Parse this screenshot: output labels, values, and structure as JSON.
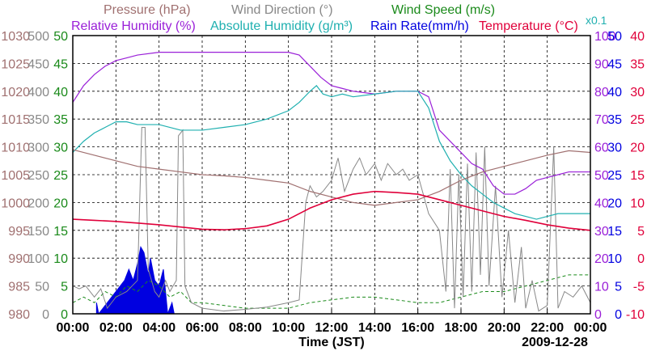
{
  "chart_data": {
    "type": "line",
    "date_label": "2009-12-28",
    "xlabel": "Time (JST)",
    "x_range_hours": [
      0,
      24
    ],
    "x_ticks": [
      "00:00",
      "02:00",
      "04:00",
      "06:00",
      "08:00",
      "10:00",
      "12:00",
      "14:00",
      "16:00",
      "18:00",
      "20:00",
      "22:00",
      "00:00"
    ],
    "legend_row1": [
      {
        "label": "Pressure (hPa)",
        "color": "#a07070"
      },
      {
        "label": "Wind Direction (°)",
        "color": "#888888"
      },
      {
        "label": "Wind Speed (m/s)",
        "color": "#1a8a1a"
      }
    ],
    "legend_row2": [
      {
        "label": "Relative Humidity (%)",
        "color": "#9a20d8"
      },
      {
        "label": "Absolute Humidity (g/m³)",
        "color": "#20b0b0"
      },
      {
        "label": "Rain Rate(mm/h)",
        "color": "#0000e0"
      },
      {
        "label": "Temperature (°C)",
        "color": "#e0003a"
      }
    ],
    "abs_humidity_scale_note": "x0.1",
    "axes": {
      "pressure": {
        "ticks": [
          "1030",
          "1025",
          "1020",
          "1015",
          "1010",
          "1005",
          "1000",
          "995",
          "990",
          "985",
          "980"
        ],
        "range": [
          980,
          1030
        ],
        "color": "#a07070"
      },
      "wind_direction": {
        "ticks": [
          "500",
          "450",
          "400",
          "350",
          "300",
          "250",
          "200",
          "150",
          "100",
          "50",
          "0"
        ],
        "range": [
          0,
          500
        ],
        "color": "#888888"
      },
      "wind_speed": {
        "ticks": [
          "50",
          "45",
          "40",
          "35",
          "30",
          "25",
          "20",
          "15",
          "10",
          "5",
          "0"
        ],
        "range": [
          0,
          50
        ],
        "color": "#1a8a1a"
      },
      "relative_humidity": {
        "ticks": [
          "100",
          "90",
          "80",
          "70",
          "60",
          "50",
          "40",
          "30",
          "20",
          "10",
          "0"
        ],
        "range": [
          0,
          100
        ],
        "color": "#9a20d8"
      },
      "rain_rate": {
        "ticks": [
          "50",
          "45",
          "40",
          "35",
          "30",
          "25",
          "20",
          "15",
          "10",
          "5",
          "0"
        ],
        "range": [
          0,
          50
        ],
        "color": "#0000e0"
      },
      "temperature": {
        "ticks": [
          "40",
          "35",
          "30",
          "25",
          "20",
          "15",
          "10",
          "5",
          "0",
          "-5",
          "-10"
        ],
        "range": [
          -10,
          40
        ],
        "color": "#e0003a"
      }
    },
    "series": [
      {
        "name": "Relative Humidity",
        "axis": "relative_humidity",
        "color": "#9a20d8",
        "points": [
          [
            0,
            76
          ],
          [
            0.5,
            82
          ],
          [
            1,
            86
          ],
          [
            1.5,
            89
          ],
          [
            2,
            91
          ],
          [
            2.5,
            92
          ],
          [
            3,
            93
          ],
          [
            4,
            94
          ],
          [
            6,
            94
          ],
          [
            8,
            94
          ],
          [
            10,
            94
          ],
          [
            10.5,
            93
          ],
          [
            11,
            89
          ],
          [
            11.5,
            85
          ],
          [
            12,
            82
          ],
          [
            12.5,
            81
          ],
          [
            13,
            80
          ],
          [
            14,
            79
          ],
          [
            15,
            80
          ],
          [
            15.5,
            80
          ],
          [
            16,
            80
          ],
          [
            16.5,
            78
          ],
          [
            17,
            66
          ],
          [
            17.5,
            62
          ],
          [
            18,
            58
          ],
          [
            18.5,
            54
          ],
          [
            19,
            52
          ],
          [
            19.5,
            46
          ],
          [
            20,
            43
          ],
          [
            20.5,
            43
          ],
          [
            21,
            45
          ],
          [
            21.5,
            48
          ],
          [
            22,
            49
          ],
          [
            22.5,
            50
          ],
          [
            23,
            51
          ],
          [
            23.5,
            51
          ],
          [
            24,
            51
          ]
        ]
      },
      {
        "name": "Absolute Humidity",
        "axis": "relative_humidity",
        "color": "#20b0b0",
        "points": [
          [
            0,
            58
          ],
          [
            0.5,
            62
          ],
          [
            1,
            65
          ],
          [
            1.5,
            67
          ],
          [
            2,
            69
          ],
          [
            2.5,
            69
          ],
          [
            3,
            68
          ],
          [
            4,
            68
          ],
          [
            5,
            66
          ],
          [
            6,
            66
          ],
          [
            7,
            67
          ],
          [
            8,
            68
          ],
          [
            9,
            70
          ],
          [
            10,
            73
          ],
          [
            10.5,
            76
          ],
          [
            11,
            80
          ],
          [
            11.3,
            82
          ],
          [
            11.6,
            79
          ],
          [
            12,
            78
          ],
          [
            12.5,
            79
          ],
          [
            13,
            78
          ],
          [
            14,
            79
          ],
          [
            15,
            80
          ],
          [
            15.5,
            80
          ],
          [
            16,
            80
          ],
          [
            16.5,
            74
          ],
          [
            17,
            62
          ],
          [
            17.5,
            55
          ],
          [
            18,
            50
          ],
          [
            18.5,
            46
          ],
          [
            19,
            43
          ],
          [
            19.5,
            40
          ],
          [
            20,
            38
          ],
          [
            20.5,
            36
          ],
          [
            21,
            35
          ],
          [
            21.5,
            34
          ],
          [
            22,
            35
          ],
          [
            22.5,
            36
          ],
          [
            23,
            36
          ],
          [
            24,
            36
          ]
        ]
      },
      {
        "name": "Pressure",
        "axis": "pressure",
        "color": "#a07070",
        "points": [
          [
            0,
            1009.5
          ],
          [
            1,
            1008.5
          ],
          [
            2,
            1007.5
          ],
          [
            3,
            1006.5
          ],
          [
            4,
            1006
          ],
          [
            5,
            1005.5
          ],
          [
            6,
            1005
          ],
          [
            7,
            1004.8
          ],
          [
            8,
            1004.5
          ],
          [
            9,
            1004
          ],
          [
            10,
            1003.5
          ],
          [
            11,
            1002
          ],
          [
            12,
            1001
          ],
          [
            13,
            1000
          ],
          [
            14,
            999.5
          ],
          [
            15,
            1000
          ],
          [
            16,
            1000.5
          ],
          [
            17,
            1002
          ],
          [
            18,
            1004
          ],
          [
            19,
            1005.5
          ],
          [
            20,
            1006.5
          ],
          [
            21,
            1007.5
          ],
          [
            22,
            1008.5
          ],
          [
            23,
            1009.3
          ],
          [
            24,
            1009
          ]
        ]
      },
      {
        "name": "Temperature",
        "axis": "temperature",
        "color": "#e0003a",
        "points": [
          [
            0,
            7
          ],
          [
            1,
            6.8
          ],
          [
            2,
            6.6
          ],
          [
            3,
            6.3
          ],
          [
            4,
            6
          ],
          [
            5,
            5.6
          ],
          [
            6,
            5.2
          ],
          [
            7,
            5.1
          ],
          [
            8,
            5.3
          ],
          [
            9,
            5.8
          ],
          [
            10,
            7
          ],
          [
            11,
            9
          ],
          [
            12,
            10.5
          ],
          [
            13,
            11.5
          ],
          [
            14,
            12
          ],
          [
            15,
            11.8
          ],
          [
            16,
            11.5
          ],
          [
            17,
            10.5
          ],
          [
            18,
            9.5
          ],
          [
            19,
            8.5
          ],
          [
            20,
            7.5
          ],
          [
            21,
            6.8
          ],
          [
            22,
            6
          ],
          [
            23,
            5.4
          ],
          [
            24,
            5
          ]
        ]
      }
    ],
    "wind_direction_series": {
      "name": "Wind Direction",
      "axis": "wind_direction",
      "color": "#888888",
      "points": [
        [
          0,
          50
        ],
        [
          0.3,
          45
        ],
        [
          0.6,
          50
        ],
        [
          1,
          30
        ],
        [
          1.3,
          45
        ],
        [
          1.6,
          10
        ],
        [
          2,
          30
        ],
        [
          2.5,
          40
        ],
        [
          3,
          60
        ],
        [
          3.2,
          335
        ],
        [
          3.35,
          335
        ],
        [
          3.5,
          80
        ],
        [
          3.8,
          40
        ],
        [
          4,
          30
        ],
        [
          4.3,
          60
        ],
        [
          4.5,
          40
        ],
        [
          4.8,
          60
        ],
        [
          4.9,
          320
        ],
        [
          5.1,
          330
        ],
        [
          5.2,
          50
        ],
        [
          5.5,
          20
        ],
        [
          6,
          10
        ],
        [
          7,
          5
        ],
        [
          8,
          8
        ],
        [
          9,
          12
        ],
        [
          10,
          20
        ],
        [
          10.5,
          25
        ],
        [
          10.8,
          200
        ],
        [
          11,
          230
        ],
        [
          11.3,
          210
        ],
        [
          11.6,
          220
        ],
        [
          12,
          240
        ],
        [
          12.3,
          280
        ],
        [
          12.6,
          220
        ],
        [
          13,
          260
        ],
        [
          13.3,
          280
        ],
        [
          13.6,
          250
        ],
        [
          14,
          270
        ],
        [
          14.3,
          240
        ],
        [
          14.6,
          270
        ],
        [
          15,
          250
        ],
        [
          15.3,
          260
        ],
        [
          15.6,
          240
        ],
        [
          16,
          250
        ],
        [
          16.5,
          180
        ],
        [
          17,
          150
        ],
        [
          17.3,
          40
        ],
        [
          17.5,
          260
        ],
        [
          17.7,
          10
        ],
        [
          17.9,
          250
        ],
        [
          18.1,
          30
        ],
        [
          18.3,
          270
        ],
        [
          18.5,
          40
        ],
        [
          18.7,
          290
        ],
        [
          18.9,
          70
        ],
        [
          19.1,
          300
        ],
        [
          19.3,
          50
        ],
        [
          19.6,
          230
        ],
        [
          19.9,
          30
        ],
        [
          20.2,
          150
        ],
        [
          20.5,
          20
        ],
        [
          20.8,
          120
        ],
        [
          21,
          10
        ],
        [
          21.3,
          60
        ],
        [
          21.6,
          5
        ],
        [
          22,
          15
        ],
        [
          22.3,
          300
        ],
        [
          22.5,
          10
        ],
        [
          22.8,
          40
        ],
        [
          23.2,
          30
        ],
        [
          23.6,
          50
        ],
        [
          24,
          20
        ]
      ]
    },
    "wind_speed_series": {
      "name": "Wind Speed",
      "axis": "wind_speed",
      "points": [
        [
          0,
          2
        ],
        [
          0.5,
          3
        ],
        [
          1,
          2
        ],
        [
          1.5,
          4
        ],
        [
          2,
          3
        ],
        [
          2.5,
          5
        ],
        [
          3,
          4
        ],
        [
          3.5,
          6
        ],
        [
          4,
          5
        ],
        [
          4.5,
          3
        ],
        [
          5,
          4
        ],
        [
          5.5,
          2
        ],
        [
          6,
          2
        ],
        [
          7,
          1.5
        ],
        [
          8,
          1
        ],
        [
          9,
          1
        ],
        [
          10,
          1
        ],
        [
          11,
          2
        ],
        [
          12,
          2.5
        ],
        [
          13,
          3
        ],
        [
          14,
          3
        ],
        [
          15,
          2.5
        ],
        [
          16,
          2
        ],
        [
          17,
          2
        ],
        [
          18,
          3
        ],
        [
          19,
          4
        ],
        [
          20,
          4
        ],
        [
          21,
          5
        ],
        [
          22,
          6
        ],
        [
          23,
          7
        ],
        [
          24,
          7
        ]
      ]
    },
    "rain_rate_series": {
      "name": "Rain Rate",
      "axis": "rain_rate",
      "points": [
        [
          1.1,
          2
        ],
        [
          1.2,
          0
        ],
        [
          2.4,
          6
        ],
        [
          2.6,
          8
        ],
        [
          2.8,
          6
        ],
        [
          3,
          9
        ],
        [
          3.15,
          12
        ],
        [
          3.3,
          11
        ],
        [
          3.5,
          7
        ],
        [
          3.6,
          10
        ],
        [
          3.8,
          6
        ],
        [
          4,
          5
        ],
        [
          4.2,
          8
        ],
        [
          4.35,
          2
        ],
        [
          4.4,
          0
        ],
        [
          4.6,
          2
        ],
        [
          4.7,
          0
        ]
      ]
    }
  }
}
